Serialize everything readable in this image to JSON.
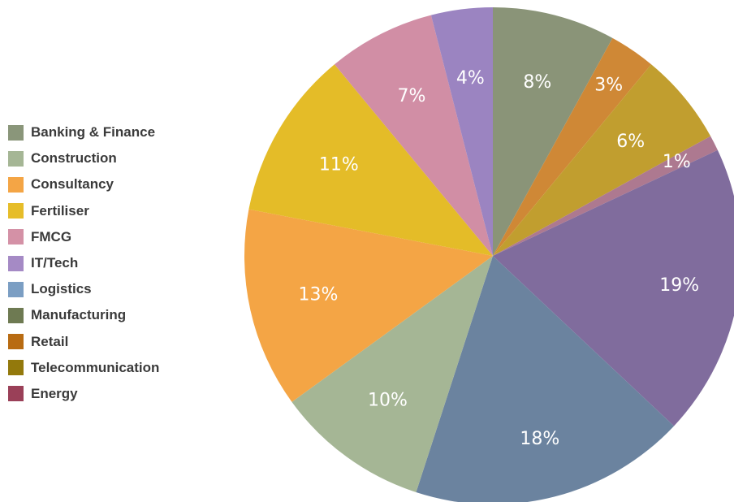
{
  "chart_data": {
    "type": "pie",
    "legend_position": "left",
    "legend": [
      {
        "label": "Banking & Finance",
        "color": "#8a967a"
      },
      {
        "label": "Construction",
        "color": "#a5b695"
      },
      {
        "label": "Consultancy",
        "color": "#f4a545"
      },
      {
        "label": "Fertiliser",
        "color": "#e6bd29"
      },
      {
        "label": "FMCG",
        "color": "#d491a6"
      },
      {
        "label": "IT/Tech",
        "color": "#a58ac5"
      },
      {
        "label": "Logistics",
        "color": "#7b9ec3"
      },
      {
        "label": "Manufacturing",
        "color": "#6e7a52"
      },
      {
        "label": "Retail",
        "color": "#b86b12"
      },
      {
        "label": "Telecommunication",
        "color": "#93790c"
      },
      {
        "label": "Energy",
        "color": "#9a4058"
      }
    ],
    "slices": [
      {
        "value": 8,
        "label": "8%",
        "color": "#8a9478"
      },
      {
        "value": 3,
        "label": "3%",
        "color": "#cf8836"
      },
      {
        "value": 6,
        "label": "6%",
        "color": "#c19e2f"
      },
      {
        "value": 1,
        "label": "1%",
        "color": "#ad7990"
      },
      {
        "value": 19,
        "label": "19%",
        "color": "#806c9d"
      },
      {
        "value": 18,
        "label": "18%",
        "color": "#6b839f"
      },
      {
        "value": 10,
        "label": "10%",
        "color": "#a5b695"
      },
      {
        "value": 13,
        "label": "13%",
        "color": "#f4a545"
      },
      {
        "value": 11,
        "label": "11%",
        "color": "#e4bc28"
      },
      {
        "value": 7,
        "label": "7%",
        "color": "#d18ea5"
      },
      {
        "value": 4,
        "label": "4%",
        "color": "#9b84c1"
      }
    ]
  }
}
